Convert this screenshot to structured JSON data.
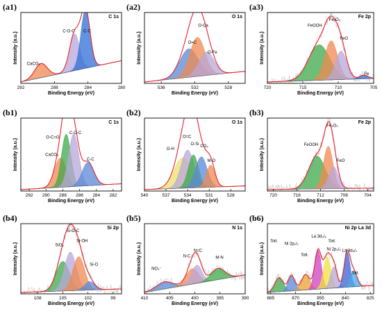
{
  "chart_data": [
    {
      "type": "area",
      "panel": "(a1)",
      "title": "C 1s",
      "xlabel": "Binding Energy (eV)",
      "ylabel": "Intensity (a.u.)",
      "xlim": [
        292,
        280
      ],
      "ticks": [
        292,
        288,
        284,
        280
      ],
      "envelope": "#e8202a",
      "noise": false,
      "bg_end": 0.3,
      "peaks": [
        {
          "name": "CaCO₃",
          "center": 289.6,
          "height": 0.2,
          "width": 0.75,
          "color": "#f08a50",
          "label_x": 290.5,
          "label_y": 0.26
        },
        {
          "name": "C-O-C",
          "center": 285.6,
          "height": 0.52,
          "width": 0.6,
          "color": "#b8a7d9",
          "label_x": 286.3,
          "label_y": 0.72
        },
        {
          "name": "C-C",
          "center": 284.3,
          "height": 0.82,
          "width": 0.55,
          "color": "#2f6ed8",
          "label_x": 284.1,
          "label_y": 0.72
        }
      ]
    },
    {
      "type": "area",
      "panel": "(a2)",
      "title": "O 1s",
      "xlabel": "Binding Energy (eV)",
      "ylabel": "Intensity (a.u.)",
      "xlim": [
        538,
        526
      ],
      "ticks": [
        536,
        532,
        528
      ],
      "envelope": "#e8202a",
      "noise": false,
      "bg_end": 0.15,
      "peaks": [
        {
          "name": "O=C",
          "center": 532.7,
          "height": 0.4,
          "width": 1.1,
          "color": "#5a88d6",
          "label_x": 532.3,
          "label_y": 0.56
        },
        {
          "name": "O-Ca",
          "center": 531.7,
          "height": 0.55,
          "width": 0.9,
          "color": "#f08a50",
          "label_x": 531.0,
          "label_y": 0.8
        },
        {
          "name": "O-Fe",
          "center": 530.6,
          "height": 0.33,
          "width": 0.9,
          "color": "#b8a7d9",
          "label_x": 529.9,
          "label_y": 0.42
        }
      ]
    },
    {
      "type": "area",
      "panel": "(a3)",
      "title": "Fe 2p",
      "xlabel": "Binding Energy (eV)",
      "ylabel": "Intensity (a.u.)",
      "xlim": [
        720,
        705
      ],
      "ticks": [
        720,
        715,
        710,
        705
      ],
      "envelope": "#e8202a",
      "noise": true,
      "bg_end": 0.05,
      "peaks": [
        {
          "name": "FeOOH",
          "center": 712.7,
          "height": 0.5,
          "width": 1.5,
          "color": "#3ea84a",
          "label_x": 713.3,
          "label_y": 0.8
        },
        {
          "name": "Fe₂O₃",
          "center": 711.0,
          "height": 0.55,
          "width": 0.9,
          "color": "#f08a50",
          "label_x": 710.5,
          "label_y": 0.88
        },
        {
          "name": "FeO",
          "center": 709.6,
          "height": 0.4,
          "width": 0.8,
          "color": "#b8a7d9",
          "label_x": 709.2,
          "label_y": 0.62
        },
        {
          "name": "Fe",
          "center": 706.4,
          "height": 0.05,
          "width": 0.6,
          "color": "#2f6ed8",
          "label_x": 706.0,
          "label_y": 0.12
        }
      ]
    },
    {
      "type": "area",
      "panel": "(b1)",
      "title": "C 1s",
      "xlabel": "Binding Energy (eV)",
      "ylabel": "Intensity (a.u.)",
      "xlim": [
        293,
        281
      ],
      "ticks": [
        292,
        290,
        288,
        286,
        284,
        282
      ],
      "envelope": "#e8202a",
      "noise": false,
      "bg_end": 0.08,
      "peaks": [
        {
          "name": "CaCO₃",
          "center": 288.3,
          "height": 0.4,
          "width": 0.7,
          "color": "#f08a50",
          "label_x": 289.3,
          "label_y": 0.48
        },
        {
          "name": "O-C=O",
          "center": 287.6,
          "height": 0.72,
          "width": 0.55,
          "color": "#3ea84a",
          "label_x": 289.2,
          "label_y": 0.72
        },
        {
          "name": "C-O-C",
          "center": 286.7,
          "height": 0.72,
          "width": 0.6,
          "color": "#b8a7d9",
          "label_x": 286.5,
          "label_y": 0.78
        },
        {
          "name": "C-C",
          "center": 285.0,
          "height": 0.32,
          "width": 0.7,
          "color": "#5a88d6",
          "label_x": 284.7,
          "label_y": 0.42
        }
      ]
    },
    {
      "type": "area",
      "panel": "(b2)",
      "title": "O 1s",
      "xlabel": "Binding Energy (eV)",
      "ylabel": "Intensity (a.u.)",
      "xlim": [
        540,
        526
      ],
      "ticks": [
        540,
        537,
        534,
        531,
        528
      ],
      "envelope": "#e8202a",
      "noise": false,
      "bg_end": 0.05,
      "peaks": [
        {
          "name": "O-H",
          "center": 534.7,
          "height": 0.42,
          "width": 1.2,
          "color": "#eee070",
          "label_x": 536.4,
          "label_y": 0.56
        },
        {
          "name": "O=C",
          "center": 534.0,
          "height": 0.52,
          "width": 0.9,
          "color": "#b8a7d9",
          "label_x": 534.1,
          "label_y": 0.73
        },
        {
          "name": "O-Si",
          "center": 533.2,
          "height": 0.45,
          "width": 0.7,
          "color": "#3ea84a",
          "label_x": 533.0,
          "label_y": 0.63
        },
        {
          "name": "CO₃",
          "center": 532.1,
          "height": 0.42,
          "width": 0.8,
          "color": "#5a88d6",
          "label_x": 531.7,
          "label_y": 0.6
        },
        {
          "name": "M-O",
          "center": 530.8,
          "height": 0.3,
          "width": 0.6,
          "color": "#f08a50",
          "label_x": 530.7,
          "label_y": 0.4
        }
      ]
    },
    {
      "type": "area",
      "panel": "(b3)",
      "title": "Fe 2p",
      "xlabel": "Binding Energy (eV)",
      "ylabel": "Intensity (a.u.)",
      "xlim": [
        721,
        703
      ],
      "ticks": [
        720,
        716,
        712,
        708,
        704
      ],
      "envelope": "#e8202a",
      "noise": true,
      "bg_end": 0.02,
      "peaks": [
        {
          "name": "FeOOH",
          "center": 712.6,
          "height": 0.45,
          "width": 1.4,
          "color": "#3ea84a",
          "label_x": 713.6,
          "label_y": 0.62
        },
        {
          "name": "Fe₂O₃",
          "center": 710.7,
          "height": 0.58,
          "width": 0.8,
          "color": "#f08a50",
          "label_x": 710.0,
          "label_y": 0.88
        },
        {
          "name": "FeO",
          "center": 709.8,
          "height": 0.3,
          "width": 0.8,
          "color": "#b8a7d9",
          "label_x": 708.6,
          "label_y": 0.4
        }
      ]
    },
    {
      "type": "area",
      "panel": "(b4)",
      "title": "Si 2p",
      "xlabel": "Binding Energy (eV)",
      "ylabel": "Intensity (a.u.)",
      "xlim": [
        110,
        98
      ],
      "ticks": [
        108,
        105,
        102,
        99
      ],
      "envelope": "#e8202a",
      "noise": true,
      "bg_end": 0.05,
      "peaks": [
        {
          "name": "SiO₂",
          "center": 105.0,
          "height": 0.42,
          "width": 0.8,
          "color": "#3ea84a",
          "label_x": 105.4,
          "label_y": 0.68
        },
        {
          "name": "Si-O-C",
          "center": 104.1,
          "height": 0.55,
          "width": 0.7,
          "color": "#b8a7d9",
          "label_x": 103.8,
          "label_y": 0.88
        },
        {
          "name": "Si-OH",
          "center": 103.1,
          "height": 0.48,
          "width": 0.7,
          "color": "#f08a50",
          "label_x": 102.7,
          "label_y": 0.74
        },
        {
          "name": "Si-O",
          "center": 101.8,
          "height": 0.12,
          "width": 0.6,
          "color": "#5a88d6",
          "label_x": 101.3,
          "label_y": 0.4
        }
      ]
    },
    {
      "type": "area",
      "panel": "(b5)",
      "title": "N 1s",
      "xlabel": "Binding Energy (eV)",
      "ylabel": "Intensity (a.u.)",
      "xlim": [
        410,
        390
      ],
      "ticks": [
        410,
        405,
        400,
        395,
        390
      ],
      "envelope": "#e8202a",
      "noise": true,
      "bg_end": 0.25,
      "peaks": [
        {
          "name": "NO₃⁻",
          "center": 406.0,
          "height": 0.1,
          "width": 1.6,
          "color": "#5a88d6",
          "label_x": 407.6,
          "label_y": 0.34
        },
        {
          "name": "N-C",
          "center": 400.5,
          "height": 0.22,
          "width": 1.2,
          "color": "#f08a50",
          "label_x": 401.6,
          "label_y": 0.52
        },
        {
          "name": "N=C",
          "center": 399.6,
          "height": 0.26,
          "width": 1.0,
          "color": "#b8a7d9",
          "label_x": 399.4,
          "label_y": 0.6
        },
        {
          "name": "M-N",
          "center": 395.4,
          "height": 0.16,
          "width": 1.4,
          "color": "#3ea84a",
          "label_x": 395.1,
          "label_y": 0.5
        }
      ]
    },
    {
      "type": "area",
      "panel": "(b6)",
      "title": "Ni 2p La 3d",
      "xlabel": "Binding Energy (eV)",
      "ylabel": "Intensity (a.u.)",
      "xlim": [
        887,
        823
      ],
      "ticks": [
        885,
        870,
        855,
        840,
        825
      ],
      "envelope": "#e8202a",
      "noise": true,
      "bg_end": 0.1,
      "peaks": [
        {
          "name": "Sat.",
          "center": 880.0,
          "height": 0.2,
          "width": 2.5,
          "color": "#3ea84a",
          "label_x": 883.0,
          "label_y": 0.74
        },
        {
          "name": "Ni 2p₁/₂",
          "center": 872.5,
          "height": 0.22,
          "width": 2.0,
          "color": "#5a88d6",
          "label_x": 872.5,
          "label_y": 0.7
        },
        {
          "name": "Sat.",
          "center": 864.0,
          "height": 0.22,
          "width": 2.5,
          "color": "#e8a030",
          "label_x": 864.5,
          "label_y": 0.54
        },
        {
          "name": "La 3d₃/₂",
          "center": 856.5,
          "height": 0.55,
          "width": 2.0,
          "color": "#d040c0",
          "label_x": 856.0,
          "label_y": 0.8
        },
        {
          "name": "Sat.",
          "center": 851.0,
          "height": 0.45,
          "width": 2.2,
          "color": "#f0e040",
          "label_x": 848.0,
          "label_y": 0.74
        },
        {
          "name": "Ni 2p₃/₂",
          "center": 847.0,
          "height": 0.3,
          "width": 2.0,
          "color": "#b8a7d9",
          "label_x": 847.0,
          "label_y": 0.62
        },
        {
          "name": "La 3d₅/₂",
          "center": 839.0,
          "height": 0.5,
          "width": 1.8,
          "color": "#3a60d0",
          "label_x": 837.5,
          "label_y": 0.6
        },
        {
          "name": "Sat.",
          "center": 835.0,
          "height": 0.22,
          "width": 2.0,
          "color": "#4aa8e8",
          "label_x": 834.0,
          "label_y": 0.28
        }
      ]
    }
  ]
}
